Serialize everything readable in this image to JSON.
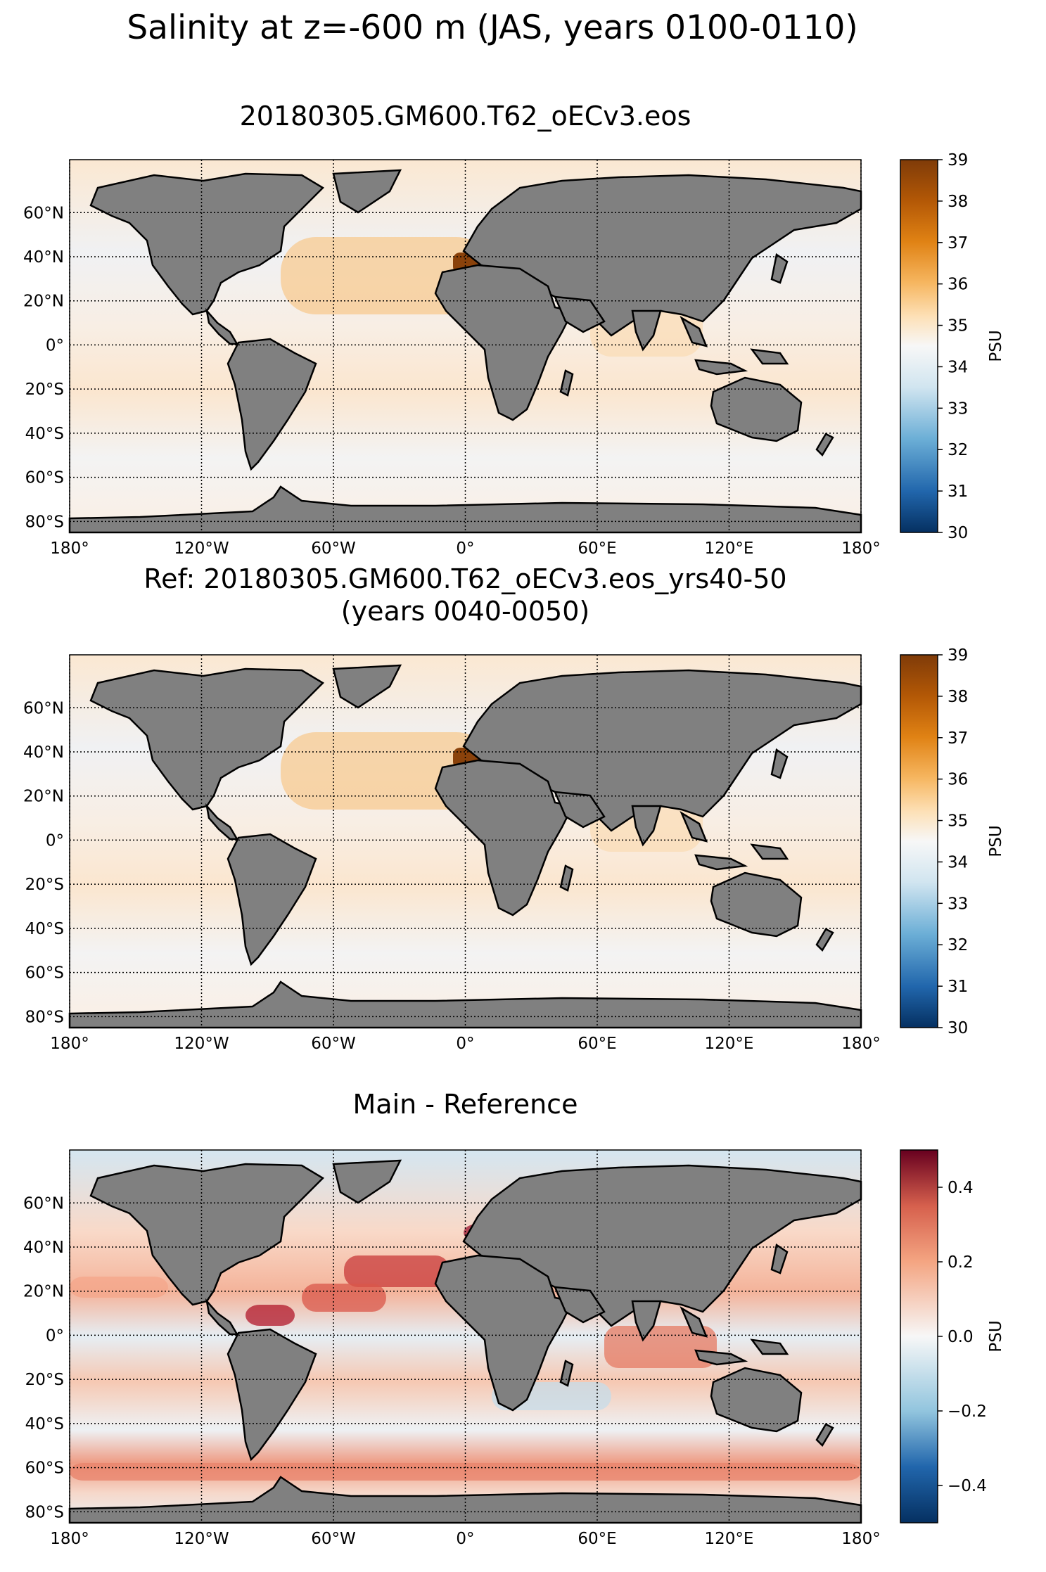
{
  "figure": {
    "title": "Salinity at z=-600 m (JAS, years 0100-0110)"
  },
  "panels": [
    {
      "id": "main",
      "title_lines": [
        "20180305.GM600.T62_oECv3.eos"
      ],
      "colorbar": {
        "label": "PSU",
        "ticks": [
          "39",
          "38",
          "37",
          "36",
          "35",
          "34",
          "33",
          "32",
          "31",
          "30"
        ],
        "range": [
          30,
          39
        ],
        "colormap": "brown-orange-white-blue"
      }
    },
    {
      "id": "reference",
      "title_lines": [
        "Ref: 20180305.GM600.T62_oECv3.eos_yrs40-50",
        "(years 0040-0050)"
      ],
      "colorbar": {
        "label": "PSU",
        "ticks": [
          "39",
          "38",
          "37",
          "36",
          "35",
          "34",
          "33",
          "32",
          "31",
          "30"
        ],
        "range": [
          30,
          39
        ],
        "colormap": "brown-orange-white-blue"
      }
    },
    {
      "id": "difference",
      "title_lines": [
        "Main - Reference"
      ],
      "colorbar": {
        "label": "PSU",
        "ticks": [
          "0.4",
          "0.2",
          "0.0",
          "−0.2",
          "−0.4"
        ],
        "range": [
          -0.5,
          0.5
        ],
        "colormap": "red-white-blue"
      }
    }
  ],
  "axes": {
    "lat_ticks": [
      "60°N",
      "40°N",
      "20°N",
      "0°",
      "20°S",
      "40°S",
      "60°S",
      "80°S"
    ],
    "lon_ticks": [
      "180°",
      "120°W",
      "60°W",
      "0°",
      "60°E",
      "120°E",
      "180°"
    ]
  },
  "colors": {
    "land": "#808080",
    "coast": "#000000"
  }
}
